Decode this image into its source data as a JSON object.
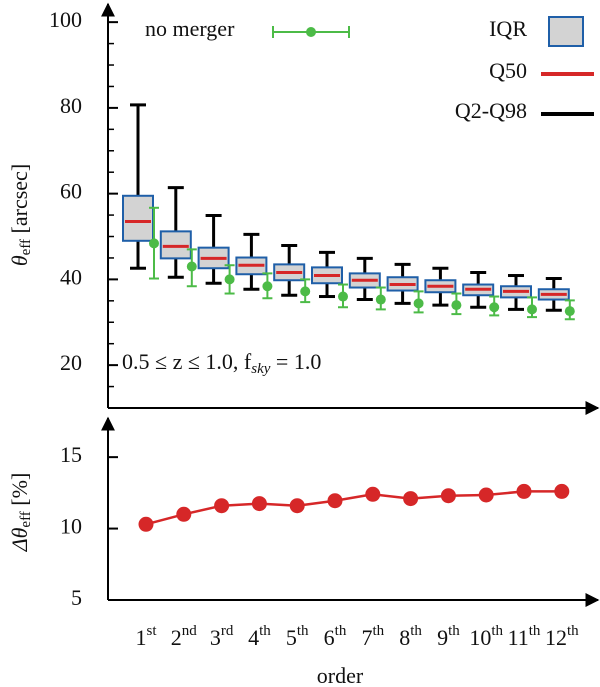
{
  "chart_data": [
    {
      "type": "box",
      "ylabel": "θ",
      "ylabel_sub": "eff",
      "ylabel_unit": " [arcsec]",
      "annotation": "0.5 ≤ z ≤ 1.0, f",
      "annotation_sub": "sky",
      "annotation_end": " = 1.0",
      "ylim": [
        10,
        104
      ],
      "yticks": [
        20,
        40,
        60,
        80,
        100
      ],
      "yminorticks": [
        15,
        25,
        30,
        35,
        45,
        50,
        55,
        65,
        70,
        75,
        85,
        90,
        95
      ],
      "boxes": {
        "iqr_name": "IQR",
        "median_name": "Q50",
        "whisker_name": "Q2-Q98",
        "box_color": "#d3d3d3",
        "edge_color": "#1f5fa8",
        "median_color": "#d62728",
        "whisker_color": "#000000",
        "q2": [
          42.6,
          40.5,
          39.1,
          37.7,
          36.3,
          36.0,
          35.3,
          34.4,
          34.0,
          33.5,
          33.0,
          32.8
        ],
        "q25": [
          49.0,
          44.9,
          42.6,
          41.2,
          39.8,
          39.1,
          38.1,
          37.4,
          37.0,
          36.3,
          35.8,
          35.3
        ],
        "q50": [
          53.5,
          47.7,
          44.9,
          43.3,
          41.6,
          40.9,
          39.8,
          38.8,
          38.4,
          37.7,
          37.2,
          36.5
        ],
        "q75": [
          59.5,
          51.2,
          47.4,
          45.1,
          43.5,
          42.8,
          41.4,
          40.5,
          39.8,
          38.8,
          38.4,
          37.7
        ],
        "q98": [
          80.7,
          61.4,
          54.9,
          50.5,
          47.9,
          46.3,
          44.9,
          43.5,
          42.6,
          41.6,
          40.9,
          40.2
        ]
      },
      "series": [
        {
          "name": "no merger",
          "color": "#4cbb47",
          "values": [
            48.4,
            43.0,
            40.0,
            38.4,
            37.2,
            36.0,
            35.3,
            34.4,
            34.0,
            33.5,
            33.0,
            32.6
          ],
          "lower": [
            40.2,
            38.4,
            36.7,
            35.6,
            34.7,
            33.5,
            33.0,
            32.3,
            31.9,
            31.6,
            31.2,
            30.7
          ],
          "upper": [
            56.7,
            47.0,
            43.3,
            41.4,
            40.0,
            38.8,
            38.1,
            37.2,
            36.7,
            36.0,
            35.8,
            35.1
          ]
        }
      ]
    },
    {
      "type": "line",
      "ylabel": "Δθ",
      "ylabel_sub": "eff",
      "ylabel_unit": " [%]",
      "xlabel": "order",
      "categories": [
        "1st",
        "2nd",
        "3rd",
        "4th",
        "5th",
        "6th",
        "7th",
        "8th",
        "9th",
        "10th",
        "11th",
        "12th"
      ],
      "ylim": [
        5,
        17.6
      ],
      "yticks": [
        5,
        10,
        15
      ],
      "color": "#d62728",
      "values": [
        10.3,
        11.0,
        11.6,
        11.75,
        11.6,
        11.95,
        12.4,
        12.1,
        12.3,
        12.35,
        12.6,
        12.6
      ]
    }
  ]
}
